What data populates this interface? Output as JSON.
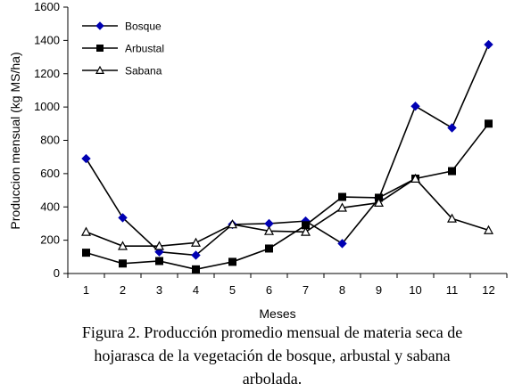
{
  "chart_data": {
    "type": "line",
    "title": "",
    "xlabel": "Meses",
    "ylabel": "Produccion mensual (kg MS/ha)",
    "x": [
      1,
      2,
      3,
      4,
      5,
      6,
      7,
      8,
      9,
      10,
      11,
      12
    ],
    "ylim": [
      0,
      1600
    ],
    "yticks": [
      0,
      200,
      400,
      600,
      800,
      1000,
      1200,
      1400,
      1600
    ],
    "grid": false,
    "legend_position": "top-left",
    "series": [
      {
        "name": "Bosque",
        "marker": "diamond",
        "color": "#0000b3",
        "values": [
          690,
          335,
          130,
          110,
          295,
          300,
          315,
          180,
          450,
          1005,
          875,
          1375
        ]
      },
      {
        "name": "Arbustal",
        "marker": "square",
        "color": "#000000",
        "values": [
          125,
          60,
          75,
          25,
          70,
          150,
          290,
          460,
          455,
          570,
          615,
          900
        ]
      },
      {
        "name": "Sabana",
        "marker": "triangle",
        "color": "#000000",
        "values": [
          250,
          165,
          165,
          185,
          295,
          255,
          250,
          395,
          425,
          570,
          330,
          260
        ]
      }
    ]
  },
  "caption": {
    "line1": "Figura 2. Producción promedio mensual de materia seca de",
    "line2": "hojarasca de la vegetación de bosque, arbustal y sabana",
    "line3": "arbolada."
  }
}
